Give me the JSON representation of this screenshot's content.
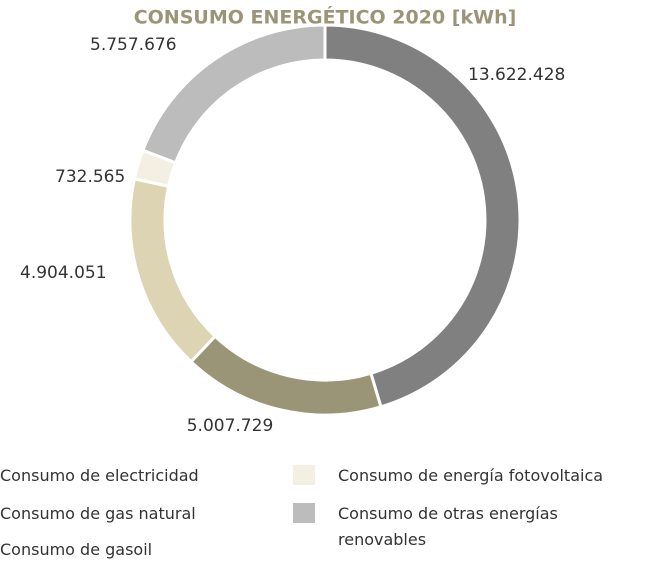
{
  "chart_data": {
    "type": "donut",
    "title": "CONSUMO ENERGÉTICO 2020 [kWh]",
    "categories": [
      "Consumo de electricidad",
      "Consumo de gas natural",
      "Consumo de gasoil",
      "Consumo de energía fotovoltaica",
      "Consumo de otras energías renovables"
    ],
    "values": [
      13622428,
      5007729,
      4904051,
      732565,
      5757676
    ],
    "value_labels": [
      "13.622.428",
      "5.007.729",
      "4.904.051",
      "732.565",
      "5.757.676"
    ],
    "colors": [
      "#808080",
      "#9b9578",
      "#dcd4b3",
      "#f3f0e3",
      "#bcbcbc"
    ]
  }
}
